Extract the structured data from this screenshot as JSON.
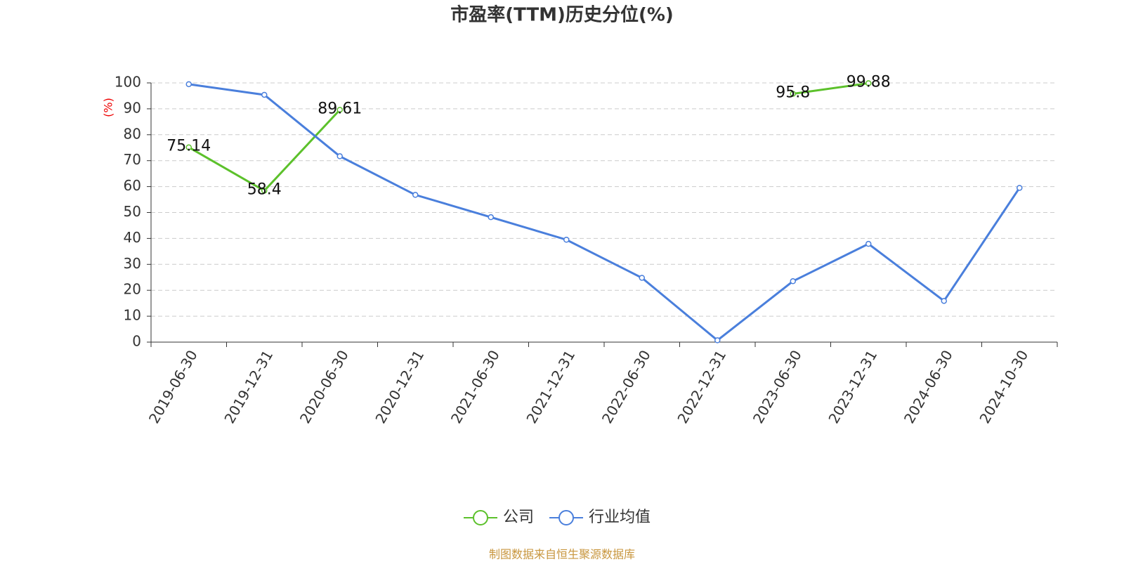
{
  "chart_data": {
    "type": "line",
    "title": "市盈率(TTM)历史分位(%)",
    "y_label": "(%)",
    "source": "制图数据来自恒生聚源数据库",
    "categories": [
      "2019-06-30",
      "2019-12-31",
      "2020-06-30",
      "2020-12-31",
      "2021-06-30",
      "2021-12-31",
      "2022-06-30",
      "2022-12-31",
      "2023-06-30",
      "2023-12-31",
      "2024-06-30",
      "2024-10-30"
    ],
    "series": [
      {
        "name": "公司",
        "color": "#5cc12b",
        "values": [
          75.14,
          58.4,
          89.61,
          null,
          null,
          null,
          null,
          null,
          95.8,
          99.88,
          null,
          null
        ],
        "show_labels": true
      },
      {
        "name": "行业均值",
        "color": "#4a7fdc",
        "values": [
          99.5,
          95.4,
          71.7,
          56.8,
          48.2,
          39.5,
          24.8,
          0.7,
          23.5,
          37.9,
          15.9,
          59.5
        ],
        "show_labels": false
      }
    ],
    "ylim": [
      0,
      100
    ],
    "yticks": [
      0,
      10,
      20,
      30,
      40,
      50,
      60,
      70,
      80,
      90,
      100
    ],
    "grid": true,
    "legend": "bottom"
  }
}
